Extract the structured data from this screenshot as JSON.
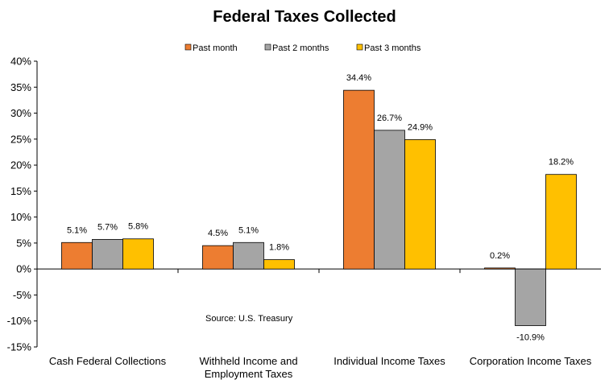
{
  "chart_data": {
    "type": "bar",
    "title": "Federal Taxes Collected",
    "categories": [
      [
        "Cash Federal Collections"
      ],
      [
        "Withheld Income and",
        "Employment Taxes"
      ],
      [
        "Individual Income Taxes"
      ],
      [
        "Corporation Income Taxes"
      ]
    ],
    "series": [
      {
        "name": "Past month",
        "color": "#ED7D31",
        "values": [
          5.1,
          4.5,
          34.4,
          0.2
        ],
        "labels": [
          "5.1%",
          "4.5%",
          "34.4%",
          "0.2%"
        ]
      },
      {
        "name": "Past 2 months",
        "color": "#A5A5A5",
        "values": [
          5.7,
          5.1,
          26.7,
          -10.9
        ],
        "labels": [
          "5.7%",
          "5.1%",
          "26.7%",
          "-10.9%"
        ]
      },
      {
        "name": "Past 3 months",
        "color": "#FFC000",
        "values": [
          5.8,
          1.8,
          24.9,
          18.2
        ],
        "labels": [
          "5.8%",
          "1.8%",
          "24.9%",
          "18.2%"
        ]
      }
    ],
    "yticks": [
      40,
      35,
      30,
      25,
      20,
      15,
      10,
      5,
      0,
      -5,
      -10,
      -15
    ],
    "ytick_labels": [
      "40%",
      "35%",
      "30%",
      "25%",
      "20%",
      "15%",
      "10%",
      "5%",
      "0%",
      "-5%",
      "-10%",
      "-15%"
    ],
    "ylim": [
      -15,
      40
    ],
    "annotation": "Source: U.S. Treasury",
    "legend_position": "top-center",
    "grid": false
  }
}
